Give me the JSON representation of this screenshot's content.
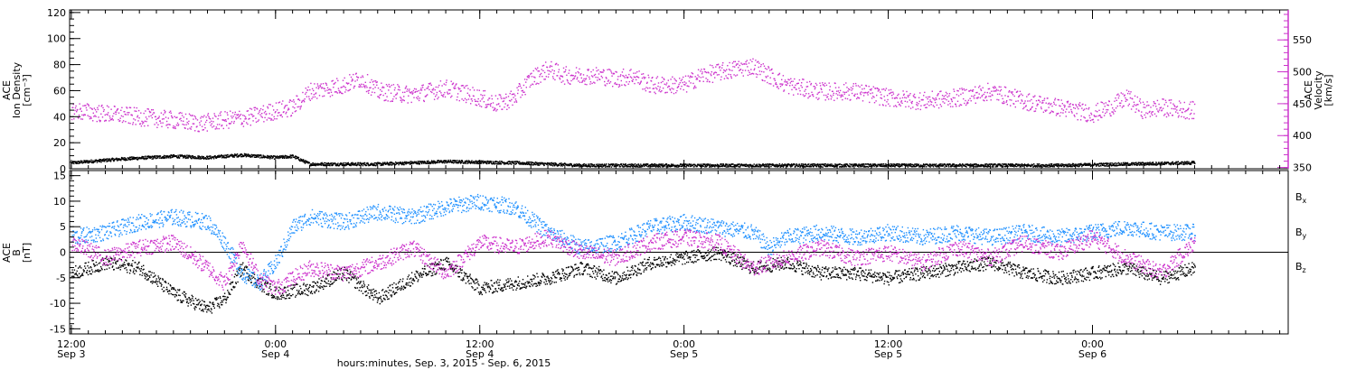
{
  "colors": {
    "black": "#000000",
    "magenta": "#cc33cc",
    "blue": "#1e90ff"
  },
  "xaxis": {
    "title": "hours:minutes, Sep.  3, 2015 - Sep.  6, 2015",
    "ticks": [
      {
        "hour": 0,
        "time": "12:00",
        "date": "Sep 3"
      },
      {
        "hour": 12,
        "time": "0:00",
        "date": "Sep 4"
      },
      {
        "hour": 24,
        "time": "12:00",
        "date": "Sep 4"
      },
      {
        "hour": 36,
        "time": "0:00",
        "date": "Sep 5"
      },
      {
        "hour": 48,
        "time": "12:00",
        "date": "Sep 5"
      },
      {
        "hour": 60,
        "time": "0:00",
        "date": "Sep 6"
      }
    ],
    "range_hours": [
      -0.1,
      71.5
    ],
    "data_end_hour": 66.0
  },
  "chart_data": [
    {
      "type": "scatter",
      "panel": "top",
      "ylabel_left": [
        "ACE",
        "Ion Density",
        "[cm⁻³]"
      ],
      "ylabel_right": [
        "ACE",
        "Velocity",
        "[km/s]"
      ],
      "left_ylim": [
        0,
        122
      ],
      "left_ticks": [
        0,
        20,
        40,
        60,
        80,
        100,
        120
      ],
      "right_ylim": [
        348,
        597
      ],
      "right_ticks": [
        350,
        400,
        450,
        500,
        550
      ],
      "series": [
        {
          "axis": "left",
          "color": "#000000",
          "points": [
            [
              0,
              5
            ],
            [
              3,
              8
            ],
            [
              6,
              10
            ],
            [
              8,
              9
            ],
            [
              10,
              11
            ],
            [
              12,
              9
            ],
            [
              13,
              10
            ],
            [
              14,
              4
            ],
            [
              18,
              4
            ],
            [
              22,
              6
            ],
            [
              26,
              5
            ],
            [
              30,
              3
            ],
            [
              34,
              3
            ],
            [
              38,
              3
            ],
            [
              42,
              3
            ],
            [
              46,
              3
            ],
            [
              50,
              3
            ],
            [
              54,
              3
            ],
            [
              58,
              3
            ],
            [
              62,
              4
            ],
            [
              66,
              5
            ]
          ]
        },
        {
          "axis": "right",
          "color": "#cc33cc",
          "points": [
            [
              0,
              440
            ],
            [
              2,
              435
            ],
            [
              4,
              430
            ],
            [
              6,
              425
            ],
            [
              7.5,
              420
            ],
            [
              9,
              425
            ],
            [
              10.5,
              430
            ],
            [
              12,
              440
            ],
            [
              13,
              445
            ],
            [
              14,
              470
            ],
            [
              16,
              480
            ],
            [
              17,
              490
            ],
            [
              18,
              470
            ],
            [
              20,
              465
            ],
            [
              22,
              475
            ],
            [
              24,
              460
            ],
            [
              25,
              450
            ],
            [
              26,
              460
            ],
            [
              27,
              490
            ],
            [
              28,
              505
            ],
            [
              29,
              495
            ],
            [
              30,
              495
            ],
            [
              31,
              495
            ],
            [
              32,
              490
            ],
            [
              33,
              495
            ],
            [
              34,
              480
            ],
            [
              36,
              480
            ],
            [
              37,
              495
            ],
            [
              38,
              500
            ],
            [
              39,
              505
            ],
            [
              40,
              510
            ],
            [
              42,
              480
            ],
            [
              44,
              470
            ],
            [
              46,
              470
            ],
            [
              48,
              460
            ],
            [
              50,
              455
            ],
            [
              52,
              460
            ],
            [
              54,
              470
            ],
            [
              56,
              455
            ],
            [
              58,
              445
            ],
            [
              59,
              440
            ],
            [
              60,
              435
            ],
            [
              61,
              445
            ],
            [
              62,
              460
            ],
            [
              63,
              440
            ],
            [
              64,
              445
            ],
            [
              66,
              440
            ]
          ]
        }
      ]
    },
    {
      "type": "scatter",
      "panel": "bottom",
      "ylabel_left": [
        "ACE",
        "B",
        "[nT]"
      ],
      "ylim": [
        -16,
        16
      ],
      "ticks": [
        -15,
        -10,
        -5,
        0,
        5,
        10,
        15
      ],
      "series": [
        {
          "name": "Bx",
          "color": "#000000",
          "points": [
            [
              0,
              -4
            ],
            [
              2,
              -2
            ],
            [
              4,
              -3
            ],
            [
              6,
              -8
            ],
            [
              8,
              -11
            ],
            [
              9,
              -9
            ],
            [
              10,
              -3
            ],
            [
              11,
              -6
            ],
            [
              12,
              -8
            ],
            [
              14,
              -7
            ],
            [
              16,
              -4
            ],
            [
              18,
              -9
            ],
            [
              20,
              -5
            ],
            [
              22,
              -2
            ],
            [
              24,
              -7
            ],
            [
              26,
              -6
            ],
            [
              28,
              -5
            ],
            [
              30,
              -3
            ],
            [
              32,
              -5
            ],
            [
              34,
              -2
            ],
            [
              36,
              -1
            ],
            [
              38,
              0
            ],
            [
              40,
              -3
            ],
            [
              42,
              -2
            ],
            [
              44,
              -4
            ],
            [
              46,
              -4
            ],
            [
              48,
              -5
            ],
            [
              50,
              -4
            ],
            [
              52,
              -3
            ],
            [
              54,
              -2
            ],
            [
              56,
              -4
            ],
            [
              58,
              -5
            ],
            [
              60,
              -4
            ],
            [
              62,
              -3
            ],
            [
              64,
              -5
            ],
            [
              66,
              -3
            ]
          ]
        },
        {
          "name": "By",
          "color": "#1e90ff",
          "points": [
            [
              0,
              3
            ],
            [
              2,
              4
            ],
            [
              4,
              6
            ],
            [
              6,
              7
            ],
            [
              8,
              6
            ],
            [
              9,
              2
            ],
            [
              10,
              -4
            ],
            [
              11,
              -6
            ],
            [
              12,
              -2
            ],
            [
              13,
              5
            ],
            [
              14,
              7
            ],
            [
              16,
              6
            ],
            [
              18,
              8
            ],
            [
              20,
              7
            ],
            [
              22,
              9
            ],
            [
              24,
              10
            ],
            [
              26,
              9
            ],
            [
              28,
              4
            ],
            [
              30,
              1
            ],
            [
              32,
              2
            ],
            [
              34,
              5
            ],
            [
              36,
              6
            ],
            [
              38,
              5
            ],
            [
              40,
              4
            ],
            [
              41,
              1
            ],
            [
              42,
              3
            ],
            [
              44,
              4
            ],
            [
              46,
              3
            ],
            [
              48,
              4
            ],
            [
              50,
              3
            ],
            [
              52,
              4
            ],
            [
              54,
              3
            ],
            [
              56,
              4
            ],
            [
              58,
              3
            ],
            [
              60,
              4
            ],
            [
              62,
              5
            ],
            [
              64,
              4
            ],
            [
              66,
              4
            ]
          ]
        },
        {
          "name": "Bz",
          "color": "#cc33cc",
          "points": [
            [
              0,
              2
            ],
            [
              2,
              -1
            ],
            [
              4,
              1
            ],
            [
              6,
              2
            ],
            [
              8,
              -3
            ],
            [
              9,
              -6
            ],
            [
              10,
              2
            ],
            [
              11,
              -5
            ],
            [
              12,
              -7
            ],
            [
              14,
              -3
            ],
            [
              16,
              -4
            ],
            [
              18,
              -2
            ],
            [
              20,
              1
            ],
            [
              22,
              -4
            ],
            [
              24,
              2
            ],
            [
              26,
              1
            ],
            [
              28,
              3
            ],
            [
              30,
              0
            ],
            [
              32,
              -1
            ],
            [
              34,
              2
            ],
            [
              36,
              3
            ],
            [
              38,
              2
            ],
            [
              40,
              -3
            ],
            [
              42,
              -1
            ],
            [
              44,
              1
            ],
            [
              46,
              -1
            ],
            [
              48,
              0
            ],
            [
              50,
              -2
            ],
            [
              52,
              1
            ],
            [
              54,
              -1
            ],
            [
              56,
              2
            ],
            [
              58,
              0
            ],
            [
              60,
              3
            ],
            [
              62,
              -1
            ],
            [
              64,
              -4
            ],
            [
              66,
              2
            ]
          ]
        }
      ],
      "legend": [
        {
          "base": "B",
          "sub": "x",
          "color": "#000000"
        },
        {
          "base": "B",
          "sub": "y",
          "color": "#1e90ff"
        },
        {
          "base": "B",
          "sub": "z",
          "color": "#cc33cc"
        }
      ]
    }
  ]
}
